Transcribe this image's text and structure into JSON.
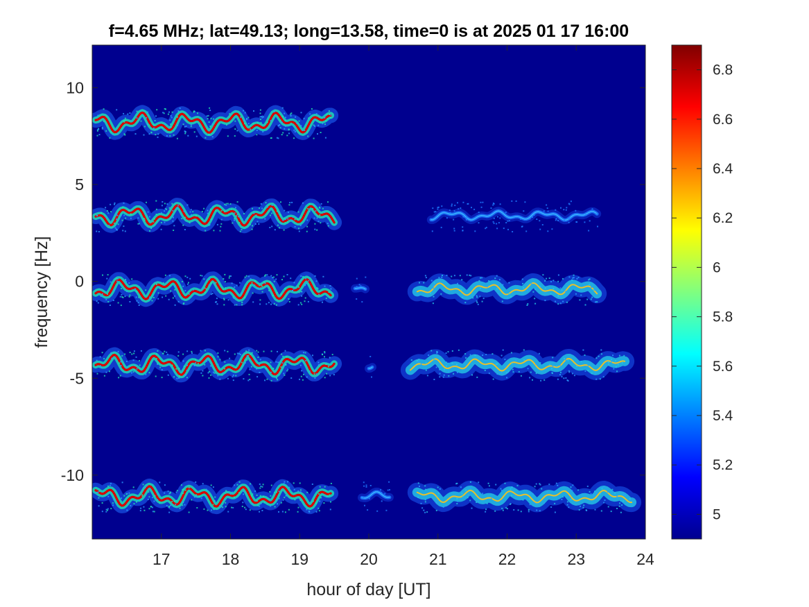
{
  "chart_data": {
    "type": "heatmap",
    "title": "f=4.65 MHz;  lat=49.13; long=13.58, time=0 is at 2025 01 17 16:00",
    "xlabel": "hour of day [UT]",
    "ylabel": "frequency [Hz]",
    "xlim": [
      16,
      24
    ],
    "ylim": [
      -13.3,
      12.2
    ],
    "x_ticks": [
      17,
      18,
      19,
      20,
      21,
      22,
      23,
      24
    ],
    "x_tick_labels": [
      "17",
      "18",
      "19",
      "20",
      "21",
      "22",
      "23",
      "24"
    ],
    "y_ticks": [
      10,
      5,
      0,
      -5,
      -10
    ],
    "y_tick_labels": [
      "10",
      "5",
      "0",
      "-5",
      "-10"
    ],
    "colormap": "jet",
    "background_color": "#00008f",
    "colorbar": {
      "range": [
        4.9,
        6.9
      ],
      "ticks": [
        6.8,
        6.6,
        6.4,
        6.2,
        6,
        5.8,
        5.6,
        5.4,
        5.2,
        5
      ],
      "tick_labels": [
        "6.8",
        "6.6",
        "6.4",
        "6.2",
        "6",
        "5.8",
        "5.6",
        "5.4",
        "5.2",
        "5"
      ]
    },
    "series": [
      {
        "center_freq_hz": 8.2,
        "segments": [
          {
            "x_start": 16.05,
            "x_end": 19.45,
            "intensity": "high"
          }
        ]
      },
      {
        "center_freq_hz": 3.4,
        "segments": [
          {
            "x_start": 16.05,
            "x_end": 19.5,
            "intensity": "high"
          },
          {
            "x_start": 20.9,
            "x_end": 23.3,
            "intensity": "low"
          }
        ]
      },
      {
        "center_freq_hz": -0.4,
        "segments": [
          {
            "x_start": 16.05,
            "x_end": 19.45,
            "intensity": "high"
          },
          {
            "x_start": 19.8,
            "x_end": 19.95,
            "intensity": "low"
          },
          {
            "x_start": 20.7,
            "x_end": 23.3,
            "intensity": "medium"
          }
        ]
      },
      {
        "center_freq_hz": -4.3,
        "segments": [
          {
            "x_start": 16.05,
            "x_end": 19.5,
            "intensity": "high"
          },
          {
            "x_start": 20.0,
            "x_end": 20.05,
            "intensity": "low"
          },
          {
            "x_start": 20.6,
            "x_end": 23.7,
            "intensity": "medium"
          }
        ]
      },
      {
        "center_freq_hz": -11.1,
        "segments": [
          {
            "x_start": 16.05,
            "x_end": 19.45,
            "intensity": "high"
          },
          {
            "x_start": 19.9,
            "x_end": 20.3,
            "intensity": "low"
          },
          {
            "x_start": 20.7,
            "x_end": 23.8,
            "intensity": "medium"
          }
        ]
      }
    ]
  }
}
